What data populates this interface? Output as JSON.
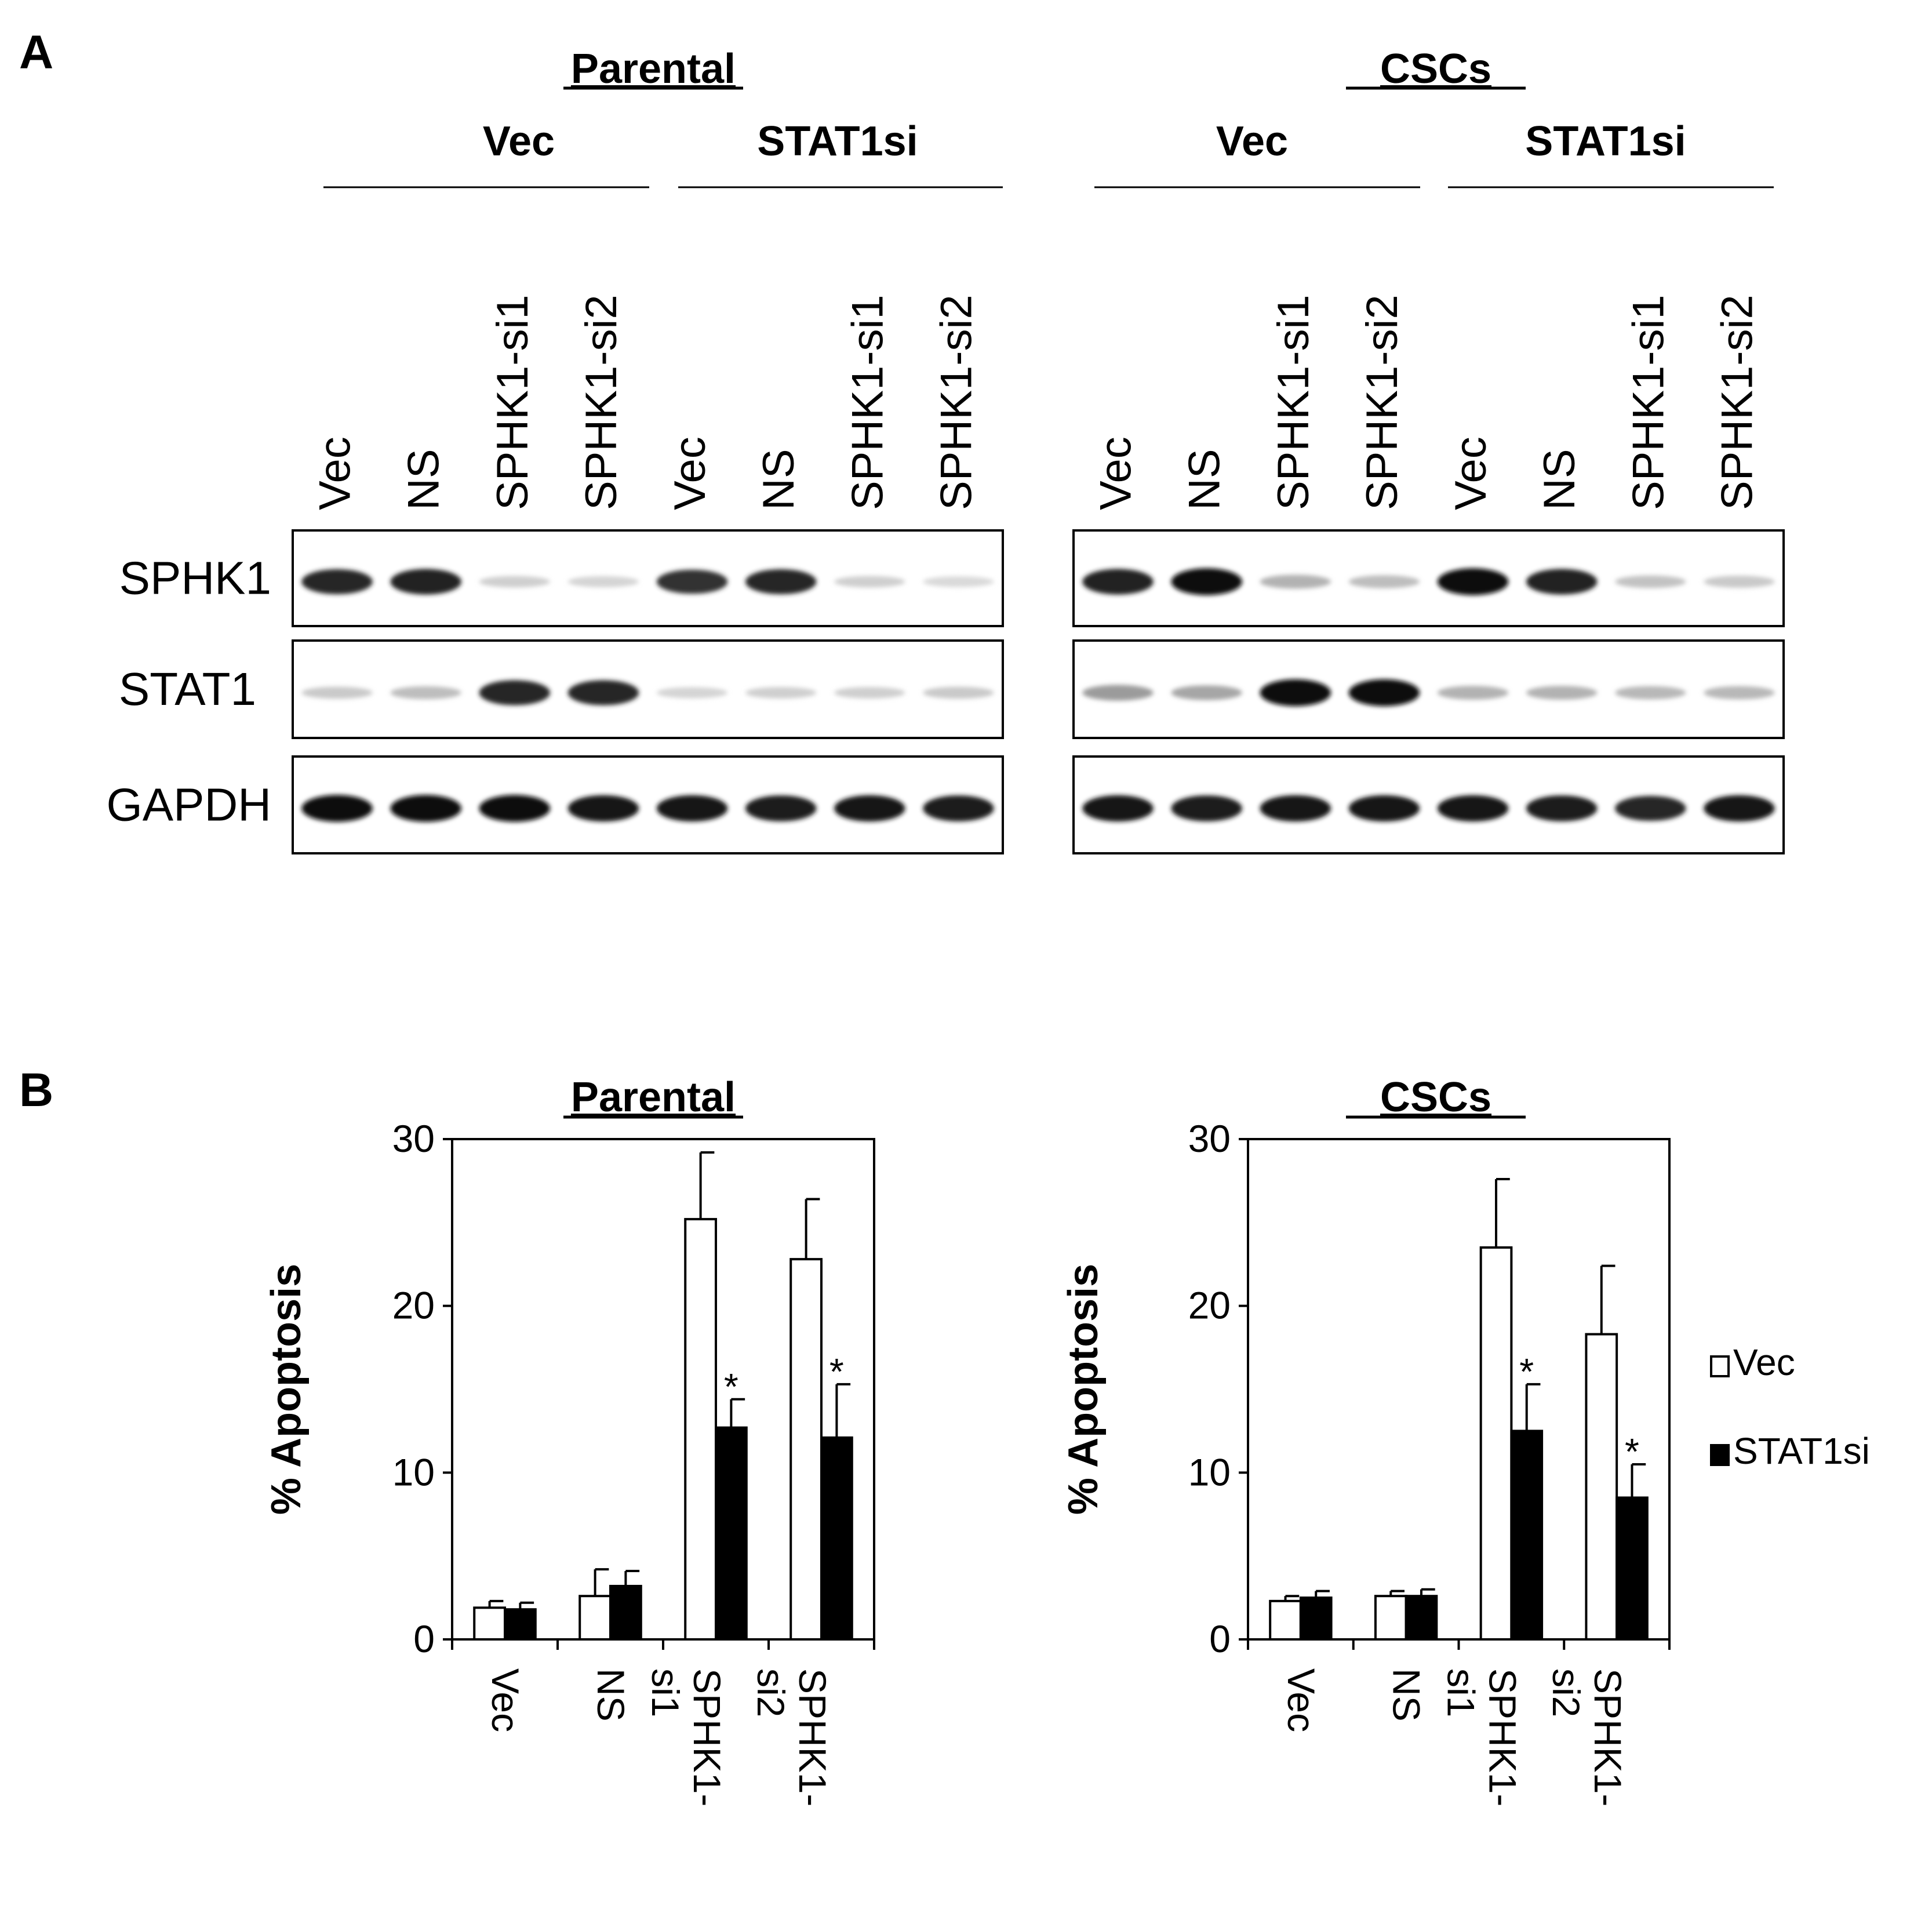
{
  "panel_a": {
    "label": "A",
    "groups": [
      {
        "title": "Parental",
        "conditions": [
          {
            "label": "Vec",
            "lanes": [
              "Vec",
              "NS",
              "SPHK1-si1",
              "SPHK1-si2"
            ]
          },
          {
            "label": "STAT1si",
            "lanes": [
              "Vec",
              "NS",
              "SPHK1-si1",
              "SPHK1-si2"
            ]
          }
        ],
        "blots": [
          {
            "protein": "SPHK1",
            "band_intensity": [
              0.85,
              0.88,
              0.12,
              0.1,
              0.8,
              0.85,
              0.12,
              0.08
            ]
          },
          {
            "protein": "STAT1",
            "band_intensity": [
              0.15,
              0.2,
              0.85,
              0.85,
              0.1,
              0.12,
              0.12,
              0.15
            ]
          },
          {
            "protein": "GAPDH",
            "band_intensity": [
              0.95,
              0.95,
              0.95,
              0.92,
              0.92,
              0.9,
              0.92,
              0.9
            ]
          }
        ]
      },
      {
        "title": "CSCs",
        "conditions": [
          {
            "label": "Vec",
            "lanes": [
              "Vec",
              "NS",
              "SPHK1-si1",
              "SPHK1-si2"
            ]
          },
          {
            "label": "STAT1si",
            "lanes": [
              "Vec",
              "NS",
              "SPHK1-si1",
              "SPHK1-si2"
            ]
          }
        ],
        "blots": [
          {
            "protein": "SPHK1",
            "band_intensity": [
              0.88,
              0.95,
              0.25,
              0.2,
              0.95,
              0.88,
              0.18,
              0.15
            ]
          },
          {
            "protein": "STAT1",
            "band_intensity": [
              0.35,
              0.3,
              0.95,
              0.95,
              0.25,
              0.25,
              0.22,
              0.22
            ]
          },
          {
            "protein": "GAPDH",
            "band_intensity": [
              0.92,
              0.9,
              0.92,
              0.92,
              0.92,
              0.9,
              0.85,
              0.92
            ]
          }
        ]
      }
    ]
  },
  "panel_b": {
    "label": "B",
    "legend": {
      "items": [
        {
          "name": "Vec",
          "fill": "#ffffff"
        },
        {
          "name": "STAT1si",
          "fill": "#000000"
        }
      ]
    }
  },
  "chart_data": [
    {
      "type": "bar",
      "title": "Parental",
      "ylabel": "% Apoptosis",
      "ylim": [
        0,
        30
      ],
      "yticks": [
        0,
        10,
        20,
        30
      ],
      "categories": [
        "Vec",
        "NS",
        "SPHK1-si1",
        "SPHK1-si2"
      ],
      "series": [
        {
          "name": "Vec",
          "color": "#ffffff",
          "values": [
            1.9,
            2.6,
            25.2,
            22.8
          ],
          "errors": [
            0.4,
            1.6,
            4.0,
            3.6
          ]
        },
        {
          "name": "STAT1si",
          "color": "#000000",
          "values": [
            1.8,
            3.2,
            12.7,
            12.1
          ],
          "errors": [
            0.4,
            0.9,
            1.7,
            3.2
          ]
        }
      ],
      "annotations": [
        {
          "category": "SPHK1-si1",
          "series": "STAT1si",
          "text": "*"
        },
        {
          "category": "SPHK1-si2",
          "series": "STAT1si",
          "text": "*"
        }
      ]
    },
    {
      "type": "bar",
      "title": "CSCs",
      "ylabel": "% Apoptosis",
      "ylim": [
        0,
        30
      ],
      "yticks": [
        0,
        10,
        20,
        30
      ],
      "categories": [
        "Vec",
        "NS",
        "SPHK1-si1",
        "SPHK1-si2"
      ],
      "series": [
        {
          "name": "Vec",
          "color": "#ffffff",
          "values": [
            2.3,
            2.6,
            23.5,
            18.3
          ],
          "errors": [
            0.3,
            0.3,
            4.1,
            4.1
          ]
        },
        {
          "name": "STAT1si",
          "color": "#000000",
          "values": [
            2.5,
            2.6,
            12.5,
            8.5
          ],
          "errors": [
            0.4,
            0.4,
            2.8,
            2.0
          ]
        }
      ],
      "annotations": [
        {
          "category": "SPHK1-si1",
          "series": "STAT1si",
          "text": "*"
        },
        {
          "category": "SPHK1-si2",
          "series": "STAT1si",
          "text": "*"
        }
      ]
    }
  ]
}
